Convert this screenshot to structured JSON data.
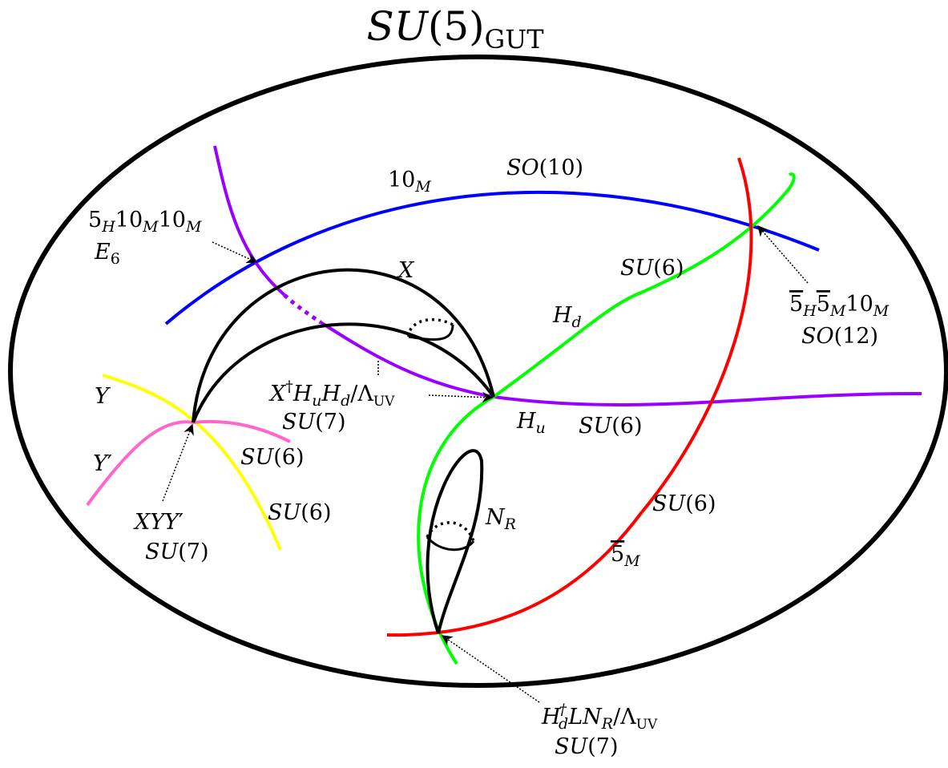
{
  "title": "SU(5)_GUT",
  "colors": {
    "curve_10M": "#0000ff",
    "curve_Hu": "#9900ff",
    "curve_Hd": "#00ff00",
    "curve_5barM": "#ff0000",
    "curve_Y": "#ffff00",
    "curve_Yprime": "#ff66cc",
    "outline": "#000000"
  },
  "curves": {
    "tenM": {
      "name": "10_M",
      "group": "SO(10)"
    },
    "Hd": {
      "name": "H_d",
      "group": "SU(6)"
    },
    "Hu": {
      "name": "H_u",
      "group": "SU(6)"
    },
    "fivebarM": {
      "name": "5̄_M",
      "group": "SU(6)"
    },
    "X": {
      "name": "X"
    },
    "NR": {
      "name": "N_R"
    },
    "Y": {
      "name": "Y",
      "group": "SU(6)"
    },
    "Yprime": {
      "name": "Y′",
      "group": "SU(6)"
    }
  },
  "points": {
    "e6": {
      "coupling": "5_H 10_M 10_M",
      "group": "E_6"
    },
    "so12": {
      "coupling": "5̄_H 5̄_M 10_M",
      "group": "SO(12)"
    },
    "xhuhd": {
      "coupling": "X† H_u H_d / Λ_UV",
      "group": "SU(7)"
    },
    "xyy": {
      "coupling": "X Y Y′",
      "group": "SU(7)"
    },
    "hdlnr": {
      "coupling": "H_d† L N_R / Λ_UV",
      "group": "SU(7)"
    }
  }
}
